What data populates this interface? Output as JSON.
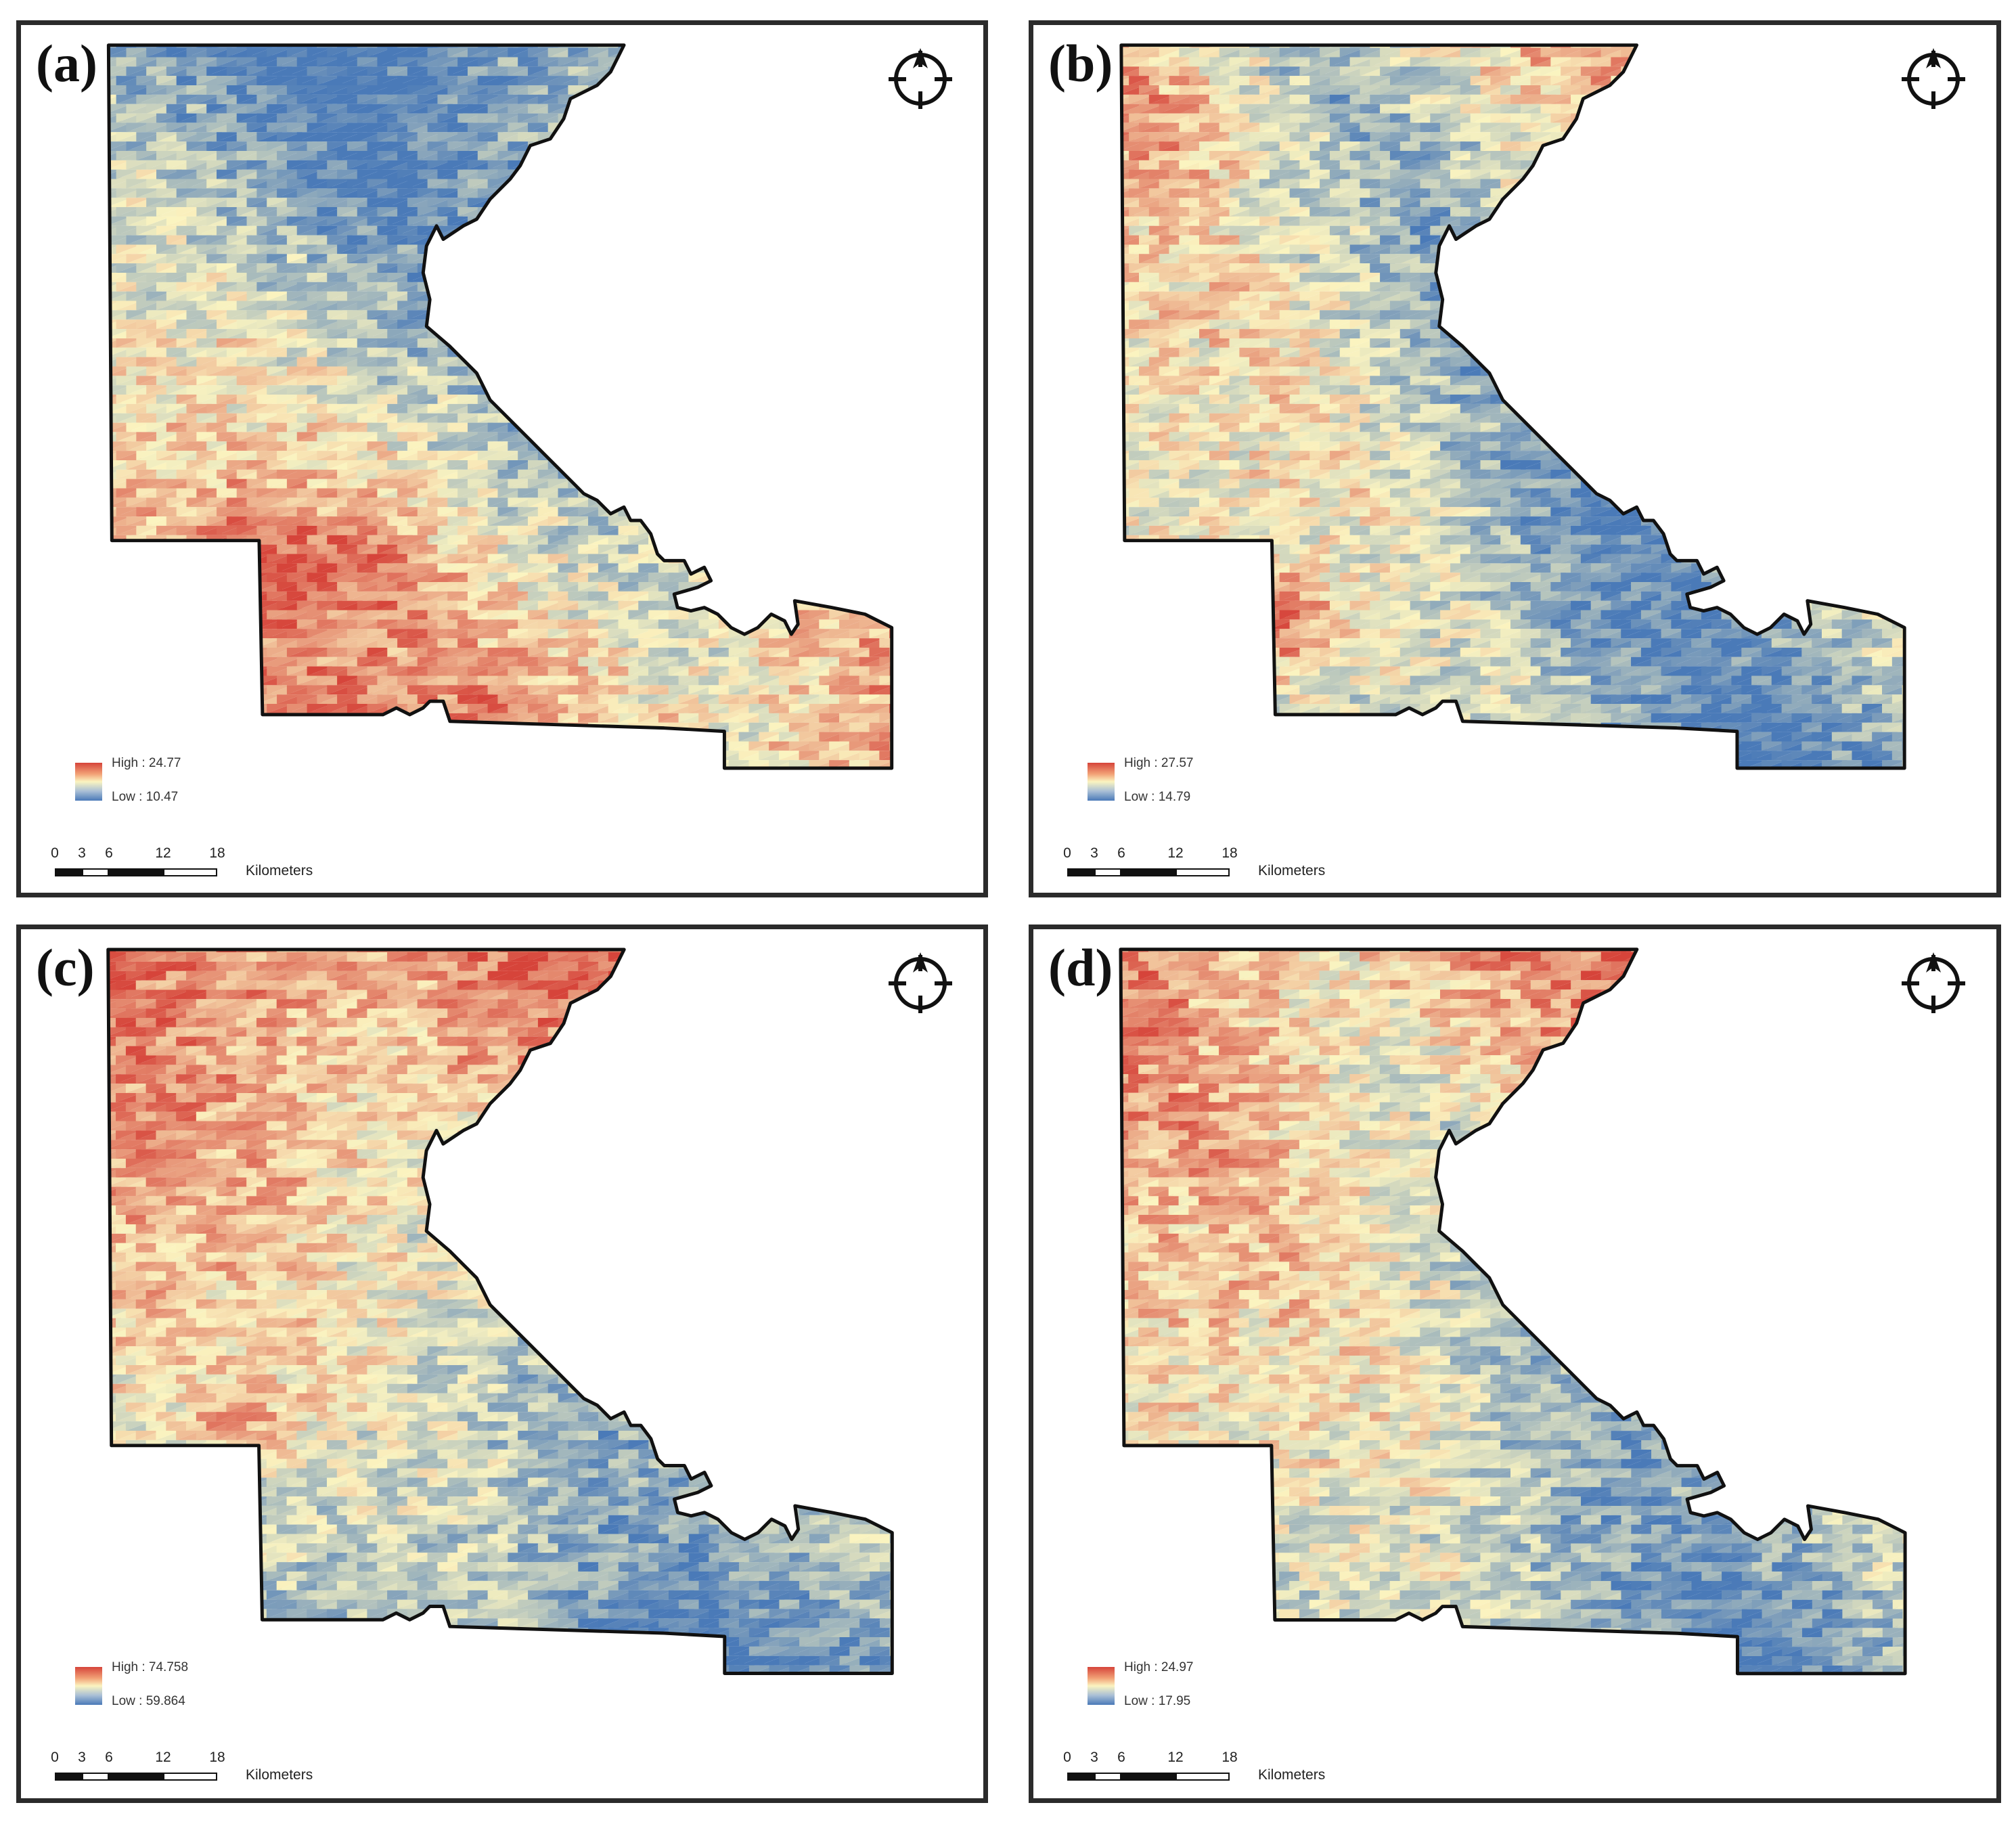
{
  "figure": {
    "panels": [
      {
        "label": "(a)",
        "legend": {
          "high": "High : 24.77",
          "low": "Low : 10.47"
        },
        "pattern": "south_high"
      },
      {
        "label": "(b)",
        "legend": {
          "high": "High : 27.57",
          "low": "Low : 14.79"
        },
        "pattern": "central_hotspot"
      },
      {
        "label": "(c)",
        "legend": {
          "high": "High : 74.758",
          "low": "Low : 59.864"
        },
        "pattern": "north_high"
      },
      {
        "label": "(d)",
        "legend": {
          "high": "High : 24.97",
          "low": "Low : 17.95"
        },
        "pattern": "north_high_mixed"
      }
    ],
    "scale_bar": {
      "ticks": [
        "0",
        "3",
        "6",
        "12",
        "18"
      ],
      "unit": "Kilometers"
    },
    "north_arrow_icon": "north-arrow-compass-icon",
    "colors": {
      "high": "#d6443a",
      "mid": "#fbf4c0",
      "low": "#4a7ab8",
      "frame": "#2b2b2b"
    }
  }
}
